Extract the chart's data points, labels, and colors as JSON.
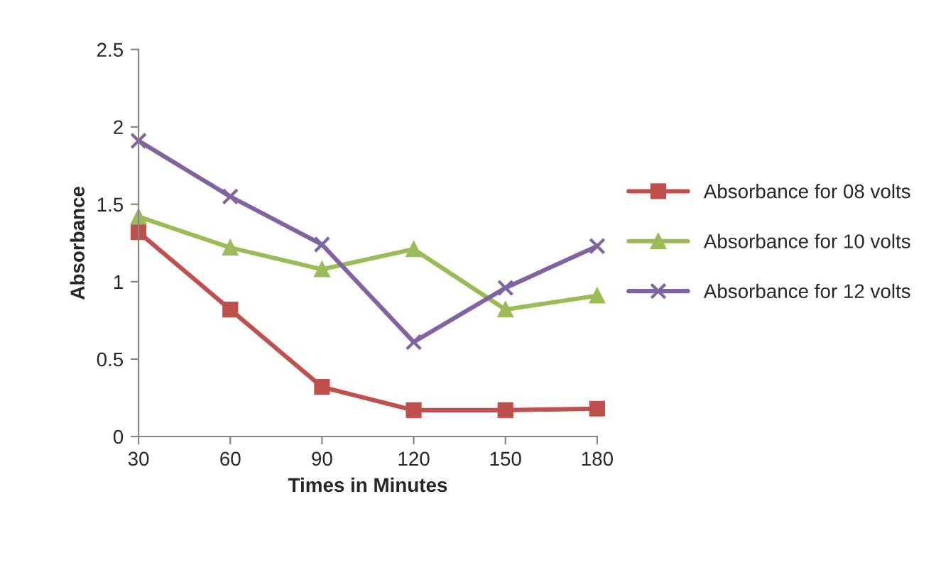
{
  "chart_data": {
    "type": "line",
    "xlabel": "Times in Minutes",
    "ylabel": "Absorbance",
    "categories": [
      "30",
      "60",
      "90",
      "120",
      "150",
      "180"
    ],
    "series": [
      {
        "name": "Absorbance for 08 volts",
        "color": "#c0504d",
        "marker": "square",
        "values": [
          1.32,
          0.82,
          0.32,
          0.17,
          0.17,
          0.18
        ]
      },
      {
        "name": "Absorbance for 10 volts",
        "color": "#9bbb59",
        "marker": "triangle",
        "values": [
          1.42,
          1.22,
          1.08,
          1.21,
          0.82,
          0.91
        ]
      },
      {
        "name": "Absorbance for 12 volts",
        "color": "#8064a2",
        "marker": "cross",
        "values": [
          1.91,
          1.55,
          1.24,
          0.61,
          0.96,
          1.23
        ]
      }
    ],
    "ylim": [
      0,
      2.5
    ],
    "yticks": [
      0,
      0.5,
      1,
      1.5,
      2,
      2.5
    ],
    "grid": false,
    "legend": "right"
  }
}
